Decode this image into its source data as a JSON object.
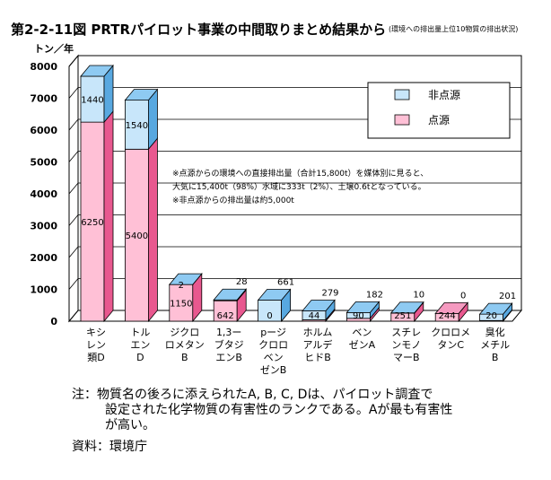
{
  "title": "第2-2-11図 PRTRパイロット事業の中間取りまとめ結果から",
  "subtitle": "(環境への排出量上位10物質の排出状況)",
  "chart_data": {
    "type": "bar",
    "stacked": true,
    "ylabel": "トン／年",
    "ylim": [
      0,
      8000
    ],
    "yticks": [
      0,
      1000,
      2000,
      3000,
      4000,
      5000,
      6000,
      7000,
      8000
    ],
    "grid": true,
    "legend_position": "top-right",
    "categories": [
      [
        "キシ",
        "レン",
        "類D"
      ],
      [
        "トル",
        "エン",
        "D"
      ],
      [
        "ジクロ",
        "ロメタン",
        "B"
      ],
      [
        "1,3ー",
        "ブタジ",
        "エンB"
      ],
      [
        "pージ",
        "クロロ",
        "ベン",
        "ゼンB"
      ],
      [
        "ホルム",
        "アルデ",
        "ヒドB"
      ],
      [
        "ベン",
        "ゼンA"
      ],
      [
        "スチレ",
        "ンモノ",
        "マーB"
      ],
      [
        "クロロメ",
        "タンC"
      ],
      [
        "臭化",
        "メチル",
        "B"
      ]
    ],
    "series": [
      {
        "name": "点源",
        "color": "#ffc0d6",
        "side_color": "#e8588f",
        "top_color": "#f59ac0",
        "values": [
          6250,
          5400,
          1150,
          642,
          0,
          44,
          90,
          251,
          244,
          20
        ]
      },
      {
        "name": "非点源",
        "color": "#c8e6fa",
        "side_color": "#58a8e0",
        "top_color": "#8ecaf2",
        "values": [
          1440,
          1540,
          2,
          28,
          661,
          279,
          182,
          10,
          0,
          201
        ]
      }
    ],
    "annotations": [
      "※点源からの環境への直接排出量（合計15,800t）を媒体別に見ると、",
      "大気に15,400t（98%）水域に333t（2%）、土壌0.6tとなっている。",
      "※非点源からの排出量は約5,000t"
    ]
  },
  "note_lines": [
    "注：物質名の後ろに添えられたA, B, C, Dは、パイロット調査で",
    "設定された化学物質の有害性のランクである。Aが最も有害性",
    "が高い。"
  ],
  "source": "資料：環境庁"
}
